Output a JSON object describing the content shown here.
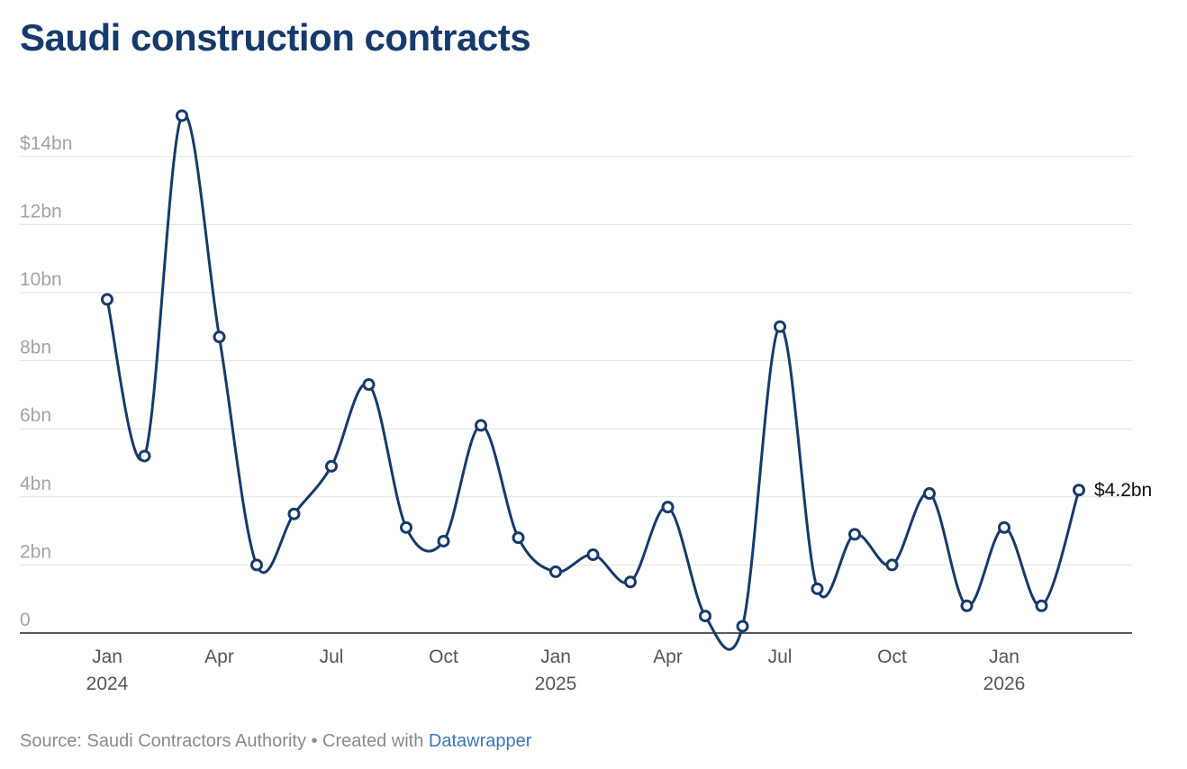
{
  "chart_data": {
    "type": "line",
    "title": "Saudi construction contracts",
    "y_unit_prefix": "$",
    "y_unit_suffix": "bn",
    "ylim": [
      0,
      15
    ],
    "yticks": [
      {
        "value": 0,
        "label": "0"
      },
      {
        "value": 2,
        "label": "2bn"
      },
      {
        "value": 4,
        "label": "4bn"
      },
      {
        "value": 6,
        "label": "6bn"
      },
      {
        "value": 8,
        "label": "8bn"
      },
      {
        "value": 10,
        "label": "10bn"
      },
      {
        "value": 12,
        "label": "12bn"
      },
      {
        "value": 14,
        "label": "$14bn"
      }
    ],
    "xticks": [
      {
        "index": 0,
        "label": "Jan",
        "year": "2024"
      },
      {
        "index": 3,
        "label": "Apr",
        "year": ""
      },
      {
        "index": 6,
        "label": "Jul",
        "year": ""
      },
      {
        "index": 9,
        "label": "Oct",
        "year": ""
      },
      {
        "index": 12,
        "label": "Jan",
        "year": "2025"
      },
      {
        "index": 15,
        "label": "Apr",
        "year": ""
      },
      {
        "index": 18,
        "label": "Jul",
        "year": ""
      },
      {
        "index": 21,
        "label": "Oct",
        "year": ""
      },
      {
        "index": 24,
        "label": "Jan",
        "year": "2026"
      }
    ],
    "series": [
      {
        "name": "Construction contracts",
        "color": "#163a6b",
        "x": [
          "2024-01",
          "2024-02",
          "2024-03",
          "2024-04",
          "2024-05",
          "2024-06",
          "2024-07",
          "2024-08",
          "2024-09",
          "2024-10",
          "2024-11",
          "2024-12",
          "2025-01",
          "2025-02",
          "2025-03",
          "2025-04",
          "2025-05",
          "2025-06",
          "2025-07",
          "2025-08",
          "2025-09",
          "2025-10",
          "2025-11",
          "2025-12",
          "2026-01",
          "2026-02",
          "2026-03"
        ],
        "values": [
          9.8,
          5.2,
          15.2,
          8.7,
          2.0,
          3.5,
          4.9,
          7.3,
          3.1,
          2.7,
          6.1,
          2.8,
          1.8,
          2.3,
          1.5,
          3.7,
          0.5,
          0.2,
          9.0,
          1.3,
          2.9,
          2.0,
          4.1,
          0.8,
          3.1,
          0.8,
          4.2
        ]
      }
    ],
    "end_label": "$4.2bn"
  },
  "footer": {
    "source_text": "Source: Saudi Contractors Authority • Created with ",
    "link_text": "Datawrapper"
  },
  "colors": {
    "line": "#163a6b",
    "grid": "#e2e2e2",
    "axis": "#222222"
  }
}
